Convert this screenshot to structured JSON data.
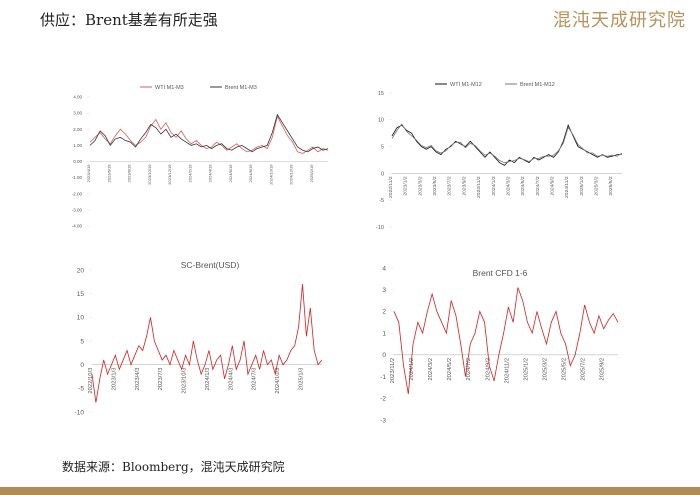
{
  "header": {
    "title": "供应：Brent基差有所走强",
    "logo": "混沌天成研究院"
  },
  "source": "数据来源：Bloomberg，混沌天成研究院",
  "chart_data": [
    {
      "type": "line",
      "categories": [
        "2023/4/19",
        null,
        null,
        null,
        "2023/6/19",
        null,
        null,
        null,
        "2023/8/19",
        null,
        null,
        null,
        "2023/10/19",
        null,
        null,
        null,
        "2023/12/19",
        null,
        null,
        null,
        "2024/2/19",
        null,
        null,
        null,
        "2024/4/19",
        null,
        null,
        null,
        "2024/6/19",
        null,
        null,
        null,
        "2024/8/19",
        null,
        null,
        null,
        "2024/10/19",
        null,
        null,
        null,
        "2024/12/19",
        null,
        null,
        null,
        "2025/2/19",
        null,
        null,
        null
      ],
      "series": [
        {
          "name": "WTI M1-M3",
          "color": "#e05a5a",
          "values": [
            1.2,
            1.5,
            1.8,
            1.4,
            1.1,
            1.6,
            2.0,
            1.7,
            1.3,
            1.0,
            1.2,
            1.5,
            2.2,
            2.6,
            2.0,
            2.4,
            1.8,
            1.5,
            1.9,
            1.4,
            1.1,
            1.3,
            1.0,
            0.8,
            0.9,
            1.2,
            1.0,
            0.7,
            0.9,
            1.1,
            0.8,
            0.6,
            0.7,
            0.9,
            1.0,
            0.8,
            1.5,
            2.8,
            2.2,
            1.6,
            1.2,
            0.6,
            0.5,
            0.7,
            0.9,
            0.6,
            0.8,
            0.7
          ]
        },
        {
          "name": "Brent M1-M3",
          "color": "#333333",
          "values": [
            1.0,
            1.3,
            1.9,
            1.6,
            1.0,
            1.4,
            1.5,
            1.3,
            1.2,
            0.9,
            1.4,
            1.8,
            2.3,
            2.1,
            1.7,
            2.0,
            1.5,
            1.7,
            1.4,
            1.2,
            1.0,
            1.1,
            0.9,
            1.0,
            0.8,
            1.0,
            1.1,
            0.8,
            0.7,
            0.9,
            1.0,
            0.8,
            0.6,
            0.8,
            0.9,
            1.0,
            1.8,
            2.9,
            2.4,
            1.9,
            1.4,
            0.9,
            0.7,
            0.6,
            0.8,
            0.9,
            0.7,
            0.8
          ]
        }
      ],
      "ylim": [
        -4,
        4
      ],
      "yticks": [
        {
          "value": 4,
          "label": "4.00"
        },
        {
          "value": 3,
          "label": "3.00"
        },
        {
          "value": 2,
          "label": "2.00"
        },
        {
          "value": 1,
          "label": "1.00"
        },
        {
          "value": 0,
          "label": "0.00"
        },
        {
          "value": -1,
          "label": "-1.00"
        },
        {
          "value": -2,
          "label": "-2.00"
        },
        {
          "value": -3,
          "label": "-3.00"
        },
        {
          "value": -4,
          "label": "-4.00"
        }
      ]
    },
    {
      "type": "line",
      "categories": [
        "2022/11/2",
        null,
        null,
        "2023/1/2",
        null,
        null,
        "2023/3/2",
        null,
        null,
        "2023/5/2",
        null,
        null,
        "2023/7/2",
        null,
        null,
        "2023/9/2",
        null,
        null,
        "2023/11/2",
        null,
        null,
        "2024/1/2",
        null,
        null,
        "2024/3/2",
        null,
        null,
        "2024/5/2",
        null,
        null,
        "2024/7/2",
        null,
        null,
        "2024/9/2",
        null,
        null,
        "2024/11/2",
        null,
        null,
        "2025/1/2",
        null,
        null,
        "2025/3/2",
        null,
        null,
        "2025/5/2",
        null,
        null
      ],
      "series": [
        {
          "name": "WTI M1-M12",
          "color": "#111111",
          "values": [
            7,
            8.5,
            9,
            8,
            7.5,
            6,
            5,
            4.5,
            5,
            4,
            3.5,
            4.5,
            5,
            6,
            5.5,
            5,
            6,
            5,
            4,
            3,
            4,
            3,
            2,
            1.5,
            2.5,
            2,
            3,
            2.5,
            2,
            3,
            2.5,
            3,
            3.5,
            3,
            4,
            6,
            9,
            7,
            5,
            4.5,
            4,
            3.5,
            3,
            3.5,
            3,
            3.2,
            3.5,
            3.6
          ]
        },
        {
          "name": "Brent M1-M12",
          "color": "#777777",
          "values": [
            6.5,
            8,
            9.2,
            7.8,
            7,
            6.2,
            5.2,
            4.8,
            5.2,
            4.2,
            3.8,
            4.2,
            5.2,
            5.8,
            5.8,
            4.8,
            5.6,
            5.2,
            4.2,
            3.4,
            3.8,
            3.2,
            2.4,
            2,
            2.2,
            2.4,
            2.8,
            2.6,
            2.2,
            2.8,
            2.8,
            3.2,
            3.2,
            3.4,
            4.2,
            5.6,
            8.6,
            7.2,
            5.4,
            4.6,
            3.8,
            3.8,
            3.2,
            3.4,
            3.2,
            3.4,
            3.2,
            3.8
          ]
        }
      ],
      "ylim": [
        -10,
        15
      ],
      "yticks": [
        15,
        10,
        5,
        0,
        -5,
        -10
      ]
    },
    {
      "type": "line",
      "title": "SC-Brent(USD)",
      "color": "#d42020",
      "categories": [
        "2022/10/3",
        null,
        null,
        null,
        null,
        null,
        "2023/1/3",
        null,
        null,
        null,
        null,
        null,
        "2023/4/3",
        null,
        null,
        null,
        null,
        null,
        "2023/7/3",
        null,
        null,
        null,
        null,
        null,
        "2023/10/3",
        null,
        null,
        null,
        null,
        null,
        "2024/1/3",
        null,
        null,
        null,
        null,
        null,
        "2024/4/3",
        null,
        null,
        null,
        null,
        null,
        "2024/7/3",
        null,
        null,
        null,
        null,
        null,
        "2024/10/3",
        null,
        null,
        null,
        null,
        null,
        "2025/1/3",
        null,
        null,
        null,
        null,
        null
      ],
      "values": [
        -2,
        -8,
        -3,
        1,
        -2,
        0,
        2,
        -1,
        1,
        3,
        0,
        2,
        4,
        3,
        6,
        10,
        5,
        3,
        1,
        2,
        0,
        3,
        1,
        -1,
        2,
        0,
        5,
        1,
        -2,
        0,
        3,
        -1,
        1,
        2,
        -3,
        0,
        4,
        -1,
        1,
        5,
        -2,
        0,
        2,
        -1,
        3,
        0,
        1,
        -2,
        2,
        0,
        1,
        3,
        4,
        8,
        17,
        6,
        12,
        3,
        0,
        1
      ],
      "ylim": [
        -10,
        20
      ],
      "yticks": [
        20,
        15,
        10,
        5,
        0,
        -5,
        -10
      ]
    },
    {
      "type": "line",
      "title": "Brent CFD 1-6",
      "color": "#d42020",
      "categories": [
        "2023/11/2",
        null,
        null,
        null,
        "2024/1/2",
        null,
        null,
        null,
        "2024/3/2",
        null,
        null,
        null,
        "2024/5/2",
        null,
        null,
        null,
        "2024/7/2",
        null,
        null,
        null,
        "2024/9/2",
        null,
        null,
        null,
        "2024/11/2",
        null,
        null,
        null,
        "2025/1/2",
        null,
        null,
        null,
        "2025/3/2",
        null,
        null,
        null,
        "2025/5/2",
        null,
        null,
        null,
        "2025/7/2",
        null,
        null,
        null,
        "2025/9/2",
        null,
        null,
        null
      ],
      "values": [
        2,
        1.5,
        -0.5,
        -1.8,
        0.5,
        1.5,
        1,
        2,
        2.8,
        2,
        1.5,
        1,
        2.5,
        1.8,
        0.5,
        -1,
        0.5,
        1,
        2,
        1.5,
        -0.5,
        -1.2,
        0,
        1,
        2.2,
        1.5,
        3.1,
        2.5,
        1.5,
        1,
        2,
        1.2,
        0.5,
        1.5,
        2,
        1,
        0.5,
        -0.5,
        0,
        1,
        2.3,
        1.5,
        1,
        1.8,
        1.2,
        1.6,
        1.9,
        1.5
      ],
      "ylim": [
        -3,
        4
      ],
      "yticks": [
        4,
        3,
        2,
        1,
        0,
        -1,
        -2,
        -3
      ]
    }
  ]
}
